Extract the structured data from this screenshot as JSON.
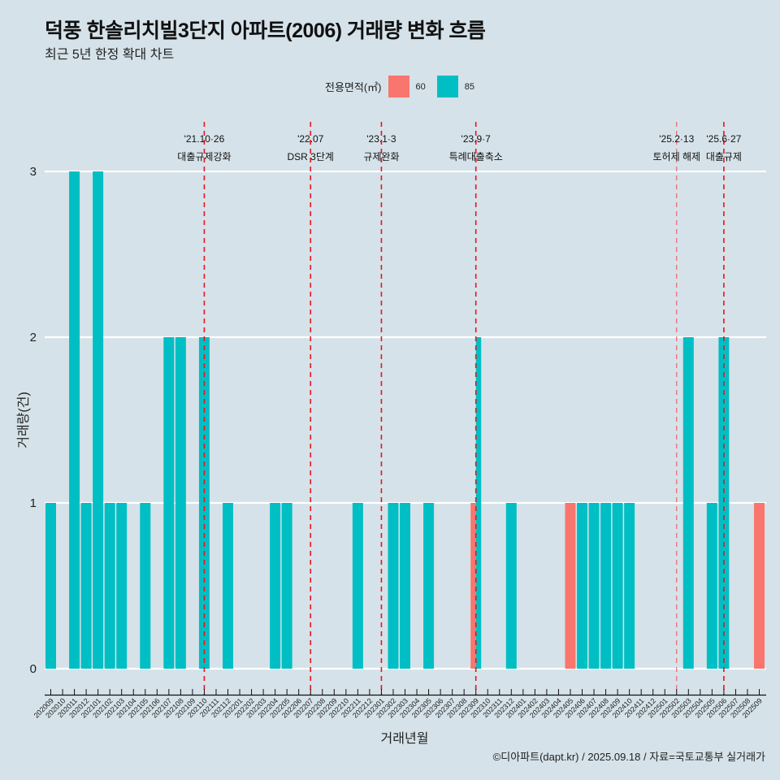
{
  "title": "덕풍 한솔리치빌3단지 아파트(2006) 거래량 변화 흐름",
  "subtitle": "최근 5년 한정 확대 차트",
  "legend": {
    "title": "전용면적(㎡)",
    "items": [
      {
        "label": "60",
        "color": "#f8766d"
      },
      {
        "label": "85",
        "color": "#00bfc4"
      }
    ]
  },
  "caption": "©디아파트(dapt.kr) / 2025.09.18 / 자료=국토교통부 실거래가",
  "chart_data": {
    "type": "bar",
    "title": "덕풍 한솔리치빌3단지 아파트(2006) 거래량 변화 흐름",
    "subtitle": "최근 5년 한정 확대 차트",
    "xlabel": "거래년월",
    "ylabel": "거래량(건)",
    "ylim": [
      0,
      3
    ],
    "yticks": [
      0,
      1,
      2,
      3
    ],
    "grid": true,
    "legend_position": "top",
    "categories": [
      "202009",
      "202010",
      "202011",
      "202012",
      "202101",
      "202102",
      "202103",
      "202104",
      "202105",
      "202106",
      "202107",
      "202108",
      "202109",
      "202110",
      "202111",
      "202112",
      "202201",
      "202202",
      "202203",
      "202204",
      "202205",
      "202206",
      "202207",
      "202208",
      "202209",
      "202210",
      "202211",
      "202212",
      "202301",
      "202302",
      "202303",
      "202304",
      "202305",
      "202306",
      "202307",
      "202308",
      "202309",
      "202310",
      "202311",
      "202312",
      "202401",
      "202402",
      "202403",
      "202404",
      "202405",
      "202406",
      "202407",
      "202408",
      "202409",
      "202410",
      "202411",
      "202412",
      "202501",
      "202502",
      "202503",
      "202504",
      "202505",
      "202506",
      "202507",
      "202508",
      "202509"
    ],
    "series": [
      {
        "name": "60",
        "color": "#f8766d",
        "values": [
          0,
          0,
          0,
          0,
          0,
          0,
          0,
          0,
          0,
          0,
          0,
          0,
          0,
          0,
          0,
          0,
          0,
          0,
          0,
          0,
          0,
          0,
          0,
          0,
          0,
          0,
          0,
          0,
          0,
          0,
          0,
          0,
          0,
          0,
          0,
          0,
          1,
          0,
          0,
          0,
          0,
          0,
          0,
          0,
          1,
          0,
          0,
          0,
          0,
          0,
          0,
          0,
          0,
          0,
          0,
          0,
          0,
          0,
          0,
          0,
          1
        ]
      },
      {
        "name": "85",
        "color": "#00bfc4",
        "values": [
          1,
          0,
          3,
          1,
          3,
          1,
          1,
          0,
          1,
          0,
          2,
          2,
          0,
          2,
          0,
          1,
          0,
          0,
          0,
          1,
          1,
          0,
          0,
          0,
          0,
          0,
          1,
          0,
          0,
          1,
          1,
          0,
          1,
          0,
          0,
          0,
          2,
          0,
          0,
          1,
          0,
          0,
          0,
          0,
          0,
          1,
          1,
          1,
          1,
          1,
          0,
          0,
          0,
          0,
          2,
          0,
          1,
          2,
          0,
          0,
          0
        ]
      }
    ],
    "annotations": [
      {
        "month": "202110",
        "date": "'21.10·26",
        "label": "대출규제강화",
        "style": "bold"
      },
      {
        "month": "202207",
        "date": "'22.07",
        "label": "DSR 3단계",
        "style": "bold"
      },
      {
        "month": "202301",
        "date": "'23.1·3",
        "label": "규제완화",
        "style": "bold"
      },
      {
        "month": "202309",
        "date": "'23.9·7",
        "label": "특례대출축소",
        "style": "bold"
      },
      {
        "month": "202502",
        "date": "'25.2·13",
        "label": "토허제 해제",
        "style": "light"
      },
      {
        "month": "202506",
        "date": "'25.6·27",
        "label": "대출규제",
        "style": "bold"
      }
    ]
  }
}
